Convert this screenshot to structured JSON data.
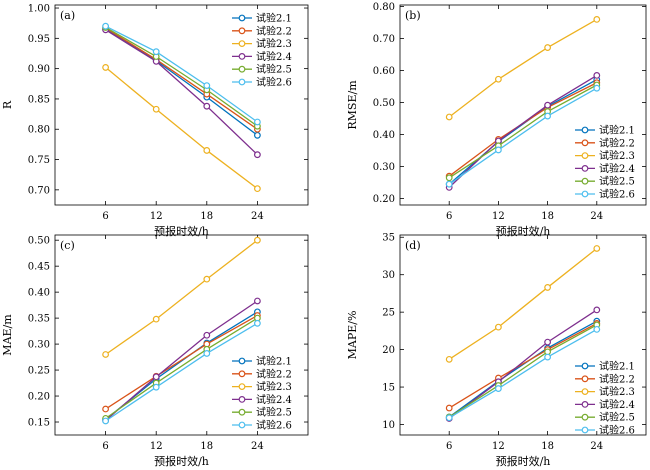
{
  "chart_data": [
    {
      "type": "line",
      "panel_label": "(a)",
      "xlabel": "预报时效/h",
      "ylabel": "R",
      "x": [
        6,
        12,
        18,
        24
      ],
      "xlim": [
        0,
        30
      ],
      "ylim": [
        0.675,
        1.005
      ],
      "yticks": [
        "0.70",
        "0.75",
        "0.80",
        "0.85",
        "0.90",
        "0.95",
        "1.00"
      ],
      "grid": false,
      "legend_position": "top-right",
      "series": [
        {
          "name": "试验2.1",
          "color": "#0072BD",
          "values": [
            0.965,
            0.913,
            0.853,
            0.79
          ]
        },
        {
          "name": "试验2.2",
          "color": "#D95319",
          "values": [
            0.967,
            0.915,
            0.858,
            0.8
          ]
        },
        {
          "name": "试验2.3",
          "color": "#EDB120",
          "values": [
            0.902,
            0.833,
            0.765,
            0.702
          ]
        },
        {
          "name": "试验2.4",
          "color": "#7E2F8E",
          "values": [
            0.964,
            0.912,
            0.838,
            0.758
          ]
        },
        {
          "name": "试验2.5",
          "color": "#77AC30",
          "values": [
            0.968,
            0.92,
            0.865,
            0.805
          ]
        },
        {
          "name": "试验2.6",
          "color": "#4DBEEE",
          "values": [
            0.97,
            0.928,
            0.872,
            0.812
          ]
        }
      ]
    },
    {
      "type": "line",
      "panel_label": "(b)",
      "xlabel": "预报时效/h",
      "ylabel": "RMSE/m",
      "x": [
        6,
        12,
        18,
        24
      ],
      "xlim": [
        0,
        30
      ],
      "ylim": [
        0.18,
        0.805
      ],
      "yticks": [
        "0.20",
        "0.30",
        "0.40",
        "0.50",
        "0.60",
        "0.70",
        "0.80"
      ],
      "grid": false,
      "legend_position": "bottom-right",
      "series": [
        {
          "name": "试验2.1",
          "color": "#0072BD",
          "values": [
            0.245,
            0.378,
            0.488,
            0.572
          ]
        },
        {
          "name": "试验2.2",
          "color": "#D95319",
          "values": [
            0.27,
            0.385,
            0.485,
            0.562
          ]
        },
        {
          "name": "试验2.3",
          "color": "#EDB120",
          "values": [
            0.455,
            0.573,
            0.672,
            0.76
          ]
        },
        {
          "name": "试验2.4",
          "color": "#7E2F8E",
          "values": [
            0.235,
            0.38,
            0.492,
            0.585
          ]
        },
        {
          "name": "试验2.5",
          "color": "#77AC30",
          "values": [
            0.265,
            0.365,
            0.472,
            0.555
          ]
        },
        {
          "name": "试验2.6",
          "color": "#4DBEEE",
          "values": [
            0.245,
            0.352,
            0.458,
            0.545
          ]
        }
      ]
    },
    {
      "type": "line",
      "panel_label": "(c)",
      "xlabel": "预报时效/h",
      "ylabel": "MAE/m",
      "x": [
        6,
        12,
        18,
        24
      ],
      "xlim": [
        0,
        30
      ],
      "ylim": [
        0.125,
        0.51
      ],
      "yticks": [
        "0.15",
        "0.20",
        "0.25",
        "0.30",
        "0.35",
        "0.40",
        "0.45",
        "0.50"
      ],
      "grid": false,
      "legend_position": "bottom-right",
      "series": [
        {
          "name": "试验2.1",
          "color": "#0072BD",
          "values": [
            0.155,
            0.233,
            0.302,
            0.362
          ]
        },
        {
          "name": "试验2.2",
          "color": "#D95319",
          "values": [
            0.175,
            0.238,
            0.3,
            0.355
          ]
        },
        {
          "name": "试验2.3",
          "color": "#EDB120",
          "values": [
            0.28,
            0.348,
            0.425,
            0.5
          ]
        },
        {
          "name": "试验2.4",
          "color": "#7E2F8E",
          "values": [
            0.153,
            0.237,
            0.317,
            0.383
          ]
        },
        {
          "name": "试验2.5",
          "color": "#77AC30",
          "values": [
            0.157,
            0.225,
            0.29,
            0.35
          ]
        },
        {
          "name": "试验2.6",
          "color": "#4DBEEE",
          "values": [
            0.152,
            0.217,
            0.282,
            0.34
          ]
        }
      ]
    },
    {
      "type": "line",
      "panel_label": "(d)",
      "xlabel": "预报时效/h",
      "ylabel": "MAPE/%",
      "x": [
        6,
        12,
        18,
        24
      ],
      "xlim": [
        0,
        30
      ],
      "ylim": [
        8.6,
        35.3
      ],
      "yticks": [
        "10",
        "15",
        "20",
        "25",
        "30",
        "35"
      ],
      "grid": false,
      "legend_position": "bottom-right",
      "series": [
        {
          "name": "试验2.1",
          "color": "#0072BD",
          "values": [
            11.0,
            15.8,
            20.2,
            23.8
          ]
        },
        {
          "name": "试验2.2",
          "color": "#D95319",
          "values": [
            12.2,
            16.2,
            20.0,
            23.5
          ]
        },
        {
          "name": "试验2.3",
          "color": "#EDB120",
          "values": [
            18.7,
            23.0,
            28.3,
            33.5
          ]
        },
        {
          "name": "试验2.4",
          "color": "#7E2F8E",
          "values": [
            10.8,
            15.7,
            21.0,
            25.3
          ]
        },
        {
          "name": "试验2.5",
          "color": "#77AC30",
          "values": [
            11.0,
            15.2,
            19.7,
            23.3
          ]
        },
        {
          "name": "试验2.6",
          "color": "#4DBEEE",
          "values": [
            10.9,
            14.8,
            19.0,
            22.7
          ]
        }
      ]
    }
  ]
}
